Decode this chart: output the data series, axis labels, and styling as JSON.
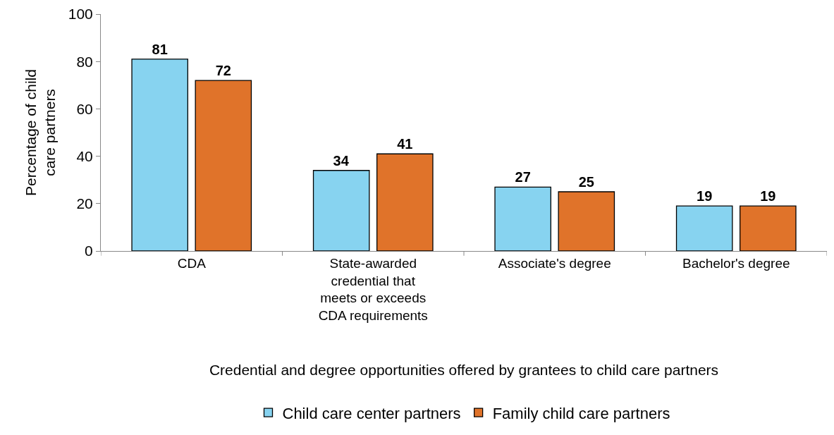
{
  "chart_data": {
    "type": "bar",
    "xlabel": "Credential and degree opportunities offered by grantees to child care partners",
    "ylabel": "Percentage of child care partners",
    "categories": [
      "CDA",
      "State-awarded credential that meets or exceeds CDA requirements",
      "Associate's degree",
      "Bachelor's degree"
    ],
    "series": [
      {
        "name": "Child care center partners",
        "color": "#87d3f0",
        "values": [
          81,
          34,
          27,
          19
        ]
      },
      {
        "name": "Family child care partners",
        "color": "#e0732a",
        "values": [
          72,
          41,
          25,
          19
        ]
      }
    ],
    "ylim": [
      0,
      100
    ],
    "yticks": [
      0,
      20,
      40,
      60,
      80,
      100
    ],
    "grid": false,
    "legend": "bottom",
    "data_labels": true
  }
}
